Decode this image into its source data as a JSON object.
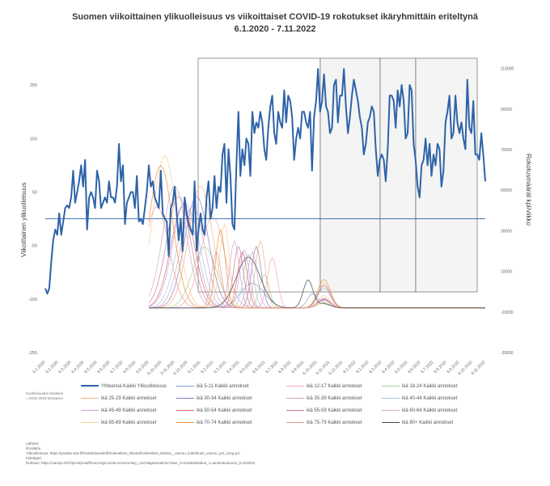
{
  "title_line1": "Suomen viikoittainen ylikuolleisuus  vs viikoittaiset COVID-19 rokotukset ikäryhmittäin eriteltynä",
  "title_line2": "6.1.2020 - 7.11.2022",
  "chart_data": {
    "type": "line",
    "title": "Suomen viikoittainen ylikuolleisuus  vs viikoittaiset COVID-19 rokotukset ikäryhmittäin eriteltynä 6.1.2020 - 7.11.2022",
    "ylabel_left": "Viikoittainen ylikuolleisuus",
    "ylabel_right": "Rokotusmäärät kpl/viikko",
    "y_left_ticks": [
      "250",
      "150",
      "50",
      "-50",
      "-150",
      "-250"
    ],
    "y_left_lim": [
      -250,
      300
    ],
    "y_right_ticks": [
      "110000",
      "90000",
      "70000",
      "50000",
      "30000",
      "10000",
      "-10000",
      "-30000"
    ],
    "y_right_lim": [
      -30000,
      115000
    ],
    "x_tick_labels": [
      "6.1.2020",
      "6.2.2020",
      "6.3.2020",
      "6.4.2020",
      "6.5.2020",
      "6.6.2020",
      "6.7.2020",
      "6.8.2020",
      "6.9.2020",
      "6.10.2020",
      "6.11.2020",
      "6.12.2020",
      "6.1.2021",
      "6.2.2021",
      "6.3.2021",
      "6.4.2021",
      "6.5.2021",
      "6.6.2021",
      "6.7.2021",
      "6.8.2021",
      "6.9.2021",
      "6.10.2021",
      "6.11.2021",
      "6.12.2021",
      "6.1.2022",
      "6.2.2022",
      "6.3.2022",
      "6.4.2022",
      "6.5.2022",
      "6.6.2022",
      "6.7.2022",
      "6.8.2022",
      "6.9.2022",
      "6.10.2022",
      "6.11.2022"
    ],
    "grid": false,
    "main_series": {
      "name": "Yhteensä Kaikki Ylikuolleisuus",
      "color": "#2e63a8",
      "axis": "left",
      "values": [
        -130,
        -140,
        -130,
        -80,
        -40,
        -20,
        -30,
        10,
        -30,
        -5,
        20,
        25,
        20,
        40,
        90,
        30,
        50,
        70,
        100,
        60,
        110,
        -20,
        40,
        50,
        40,
        20,
        90,
        70,
        20,
        30,
        40,
        30,
        70,
        40,
        40,
        30,
        60,
        140,
        70,
        100,
        -10,
        30,
        40,
        50,
        50,
        20,
        80,
        -5,
        0,
        -10,
        20,
        50,
        100,
        60,
        70,
        40,
        30,
        20,
        90,
        10,
        0,
        -5,
        -70,
        20,
        30,
        60,
        10,
        -40,
        0,
        -60,
        40,
        10,
        -10,
        -20,
        -30,
        70,
        -60,
        -20,
        10,
        -20,
        -30,
        40,
        70,
        0,
        20,
        80,
        20,
        60,
        50,
        120,
        140,
        30,
        130,
        80,
        -10,
        -20,
        100,
        200,
        80,
        130,
        100,
        150,
        140,
        80,
        200,
        160,
        180,
        170,
        200,
        180,
        130,
        110,
        170,
        210,
        230,
        160,
        140,
        200,
        180,
        170,
        240,
        180,
        230,
        220,
        190,
        110,
        150,
        170,
        150,
        200,
        200,
        180,
        170,
        200,
        90,
        190,
        220,
        280,
        200,
        220,
        270,
        210,
        200,
        160,
        170,
        250,
        260,
        180,
        230,
        230,
        280,
        210,
        160,
        190,
        230,
        260,
        240,
        220,
        190,
        170,
        120,
        140,
        180,
        190,
        210,
        200,
        130,
        80,
        110,
        120,
        110,
        70,
        130,
        230,
        230,
        220,
        170,
        240,
        210,
        250,
        220,
        150,
        160,
        250,
        240,
        140,
        110,
        60,
        40,
        100,
        110,
        150,
        100,
        140,
        80,
        120,
        100,
        140,
        130,
        60,
        90,
        180,
        200,
        230,
        150,
        160,
        230,
        180,
        160,
        180,
        150,
        130,
        260,
        170,
        160,
        220,
        120,
        120,
        110,
        160,
        120,
        70
      ]
    },
    "main_series_note": "weekly values, one per week from 6.1.2020",
    "vaccination_series": [
      {
        "name": "ikä 5-11 Kaikki annokset",
        "color": "#7ba3d8",
        "peak": 12000,
        "peak_week": 104
      },
      {
        "name": "ikä 12-17 Kaikki annokset",
        "color": "#f0a8b8",
        "peak": 45000,
        "peak_week": 84
      },
      {
        "name": "ikä 18-24 Kaikki annokset",
        "color": "#a9d18e",
        "peak": 30000,
        "peak_week": 80
      },
      {
        "name": "ikä 25-29 Kaikki annokset",
        "color": "#f4b183",
        "peak": 60000,
        "peak_week": 78
      },
      {
        "name": "ikä 30-34 Kaikki annokset",
        "color": "#8e7cc3",
        "peak": 55000,
        "peak_week": 76
      },
      {
        "name": "ikä 35-39 Kaikki annokset",
        "color": "#d6a6b6",
        "peak": 50000,
        "peak_week": 74
      },
      {
        "name": "ikä 40-44 Kaikki annokset",
        "color": "#9fc5e8",
        "peak": 48000,
        "peak_week": 72
      },
      {
        "name": "ikä 45-49 Kaikki annokset",
        "color": "#c9a0dc",
        "peak": 52000,
        "peak_week": 70
      },
      {
        "name": "ikä 50-54 Kaikki annokset",
        "color": "#e06666",
        "peak": 50000,
        "peak_week": 69
      },
      {
        "name": "ikä 55-59 Kaikki annokset",
        "color": "#c27ba0",
        "peak": 55000,
        "peak_week": 67
      },
      {
        "name": "ikä 60-64 Kaikki annokset",
        "color": "#d5a6bd",
        "peak": 60000,
        "peak_week": 65
      },
      {
        "name": "ikä 65-69 Kaikki annokset",
        "color": "#f9cb9c",
        "peak": 75000,
        "peak_week": 60
      },
      {
        "name": "ikä 70-74 Kaikki annokset",
        "color": "#e69138",
        "peak": 70000,
        "peak_week": 58
      },
      {
        "name": "ikä 75-79 Kaikki annokset",
        "color": "#ea9999",
        "peak": 50000,
        "peak_week": 56
      },
      {
        "name": "ikä 80+ Kaikki annokset",
        "color": "#434343",
        "peak": 25000,
        "peak_week": 102
      }
    ],
    "legend_placement": "bottom"
  },
  "legend_main": "Yhteensä Kaikki Ylikuolleisuus",
  "footnote_line1": "Kuolleisuuden baseline",
  "footnote_line2": "= 2015-2019 keskiarvo",
  "source_header": "Lähteet:",
  "source_sub": "Ilmoitettu",
  "source_line1": "Ylikuolleisuus: https://pxdata.stat.fi/PxWeb/pxweb/fi/Kokeelliset_tilastot/Kokeelliset_tilastot__vamuu_koke/koeti_vamuu_pxt_12ng.px/",
  "source_line1b": "Kiitettyjen",
  "source_line2": "Rokotus: https://sampo.thl.fi/pivot/prod/fi/vaccreg/cov19cov/summary_cov19ageareatime?alue_0=518362&abue_1=&rokotusannos_0=533024"
}
